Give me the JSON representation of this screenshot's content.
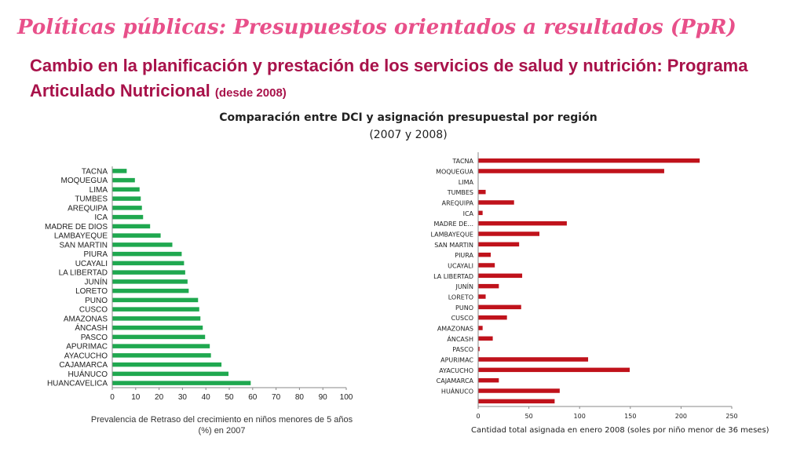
{
  "slide": {
    "title": "Políticas públicas: Presupuestos orientados a resultados (PpR)",
    "subtitle_main": "Cambio en la planificación y prestación de los servicios de salud y nutrición: Programa Articulado Nutricional",
    "subtitle_small": "(desde 2008)",
    "comparison_title": "Comparación entre DCI y asignación presupuestal por región",
    "comparison_subtitle": "(2007 y 2008)"
  },
  "chart_data": [
    {
      "type": "bar",
      "orientation": "horizontal",
      "color": "#1fa84f",
      "categories": [
        "TACNA",
        "MOQUEGUA",
        "LIMA",
        "TUMBES",
        "AREQUIPA",
        "ICA",
        "MADRE DE DIOS",
        "LAMBAYEQUE",
        "SAN MARTIN",
        "PIURA",
        "UCAYALI",
        "LA LIBERTAD",
        "JUNÍN",
        "LORETO",
        "PUNO",
        "CUSCO",
        "AMAZONAS",
        "ÁNCASH",
        "PASCO",
        "APURIMAC",
        "AYACUCHO",
        "CAJAMARCA",
        "HUÁNUCO",
        "HUANCAVELICA"
      ],
      "values": [
        6,
        9.5,
        11.5,
        12,
        12.5,
        13,
        16,
        20.5,
        25.5,
        29.5,
        30.5,
        31,
        32,
        32.5,
        36.5,
        37,
        37.5,
        38.5,
        39.5,
        41.5,
        42,
        46.5,
        49.5,
        59
      ],
      "xlabel": "Prevalencia de Retraso del crecimiento en niños menores de 5 años (%) en 2007",
      "xlim": [
        0,
        100
      ],
      "xticks": [
        0,
        10,
        20,
        30,
        40,
        50,
        60,
        70,
        80,
        90,
        100
      ]
    },
    {
      "type": "bar",
      "orientation": "horizontal",
      "color": "#c0121b",
      "categories": [
        "TACNA",
        "MOQUEGUA",
        "LIMA",
        "TUMBES",
        "AREQUIPA",
        "ICA",
        "MADRE DE...",
        "LAMBAYEQUE",
        "SAN MARTIN",
        "PIURA",
        "UCAYALI",
        "LA LIBERTAD",
        "JUNÍN",
        "LORETO",
        "PUNO",
        "CUSCO",
        "AMAZONAS",
        "ÁNCASH",
        "PASCO",
        "APURIMAC",
        "AYACUCHO",
        "CAJAMARCA",
        "HUÁNUCO",
        ""
      ],
      "values": [
        218,
        183,
        0,
        7,
        35,
        4,
        87,
        60,
        40,
        12,
        16,
        43,
        20,
        7,
        42,
        28,
        4,
        14,
        1,
        108,
        149,
        20,
        80,
        75
      ],
      "xlabel": "Cantidad total asignada en enero 2008 (soles por niño menor de 36 meses)",
      "xlim": [
        0,
        250
      ],
      "xticks": [
        0,
        50,
        100,
        150,
        200,
        250
      ]
    }
  ]
}
